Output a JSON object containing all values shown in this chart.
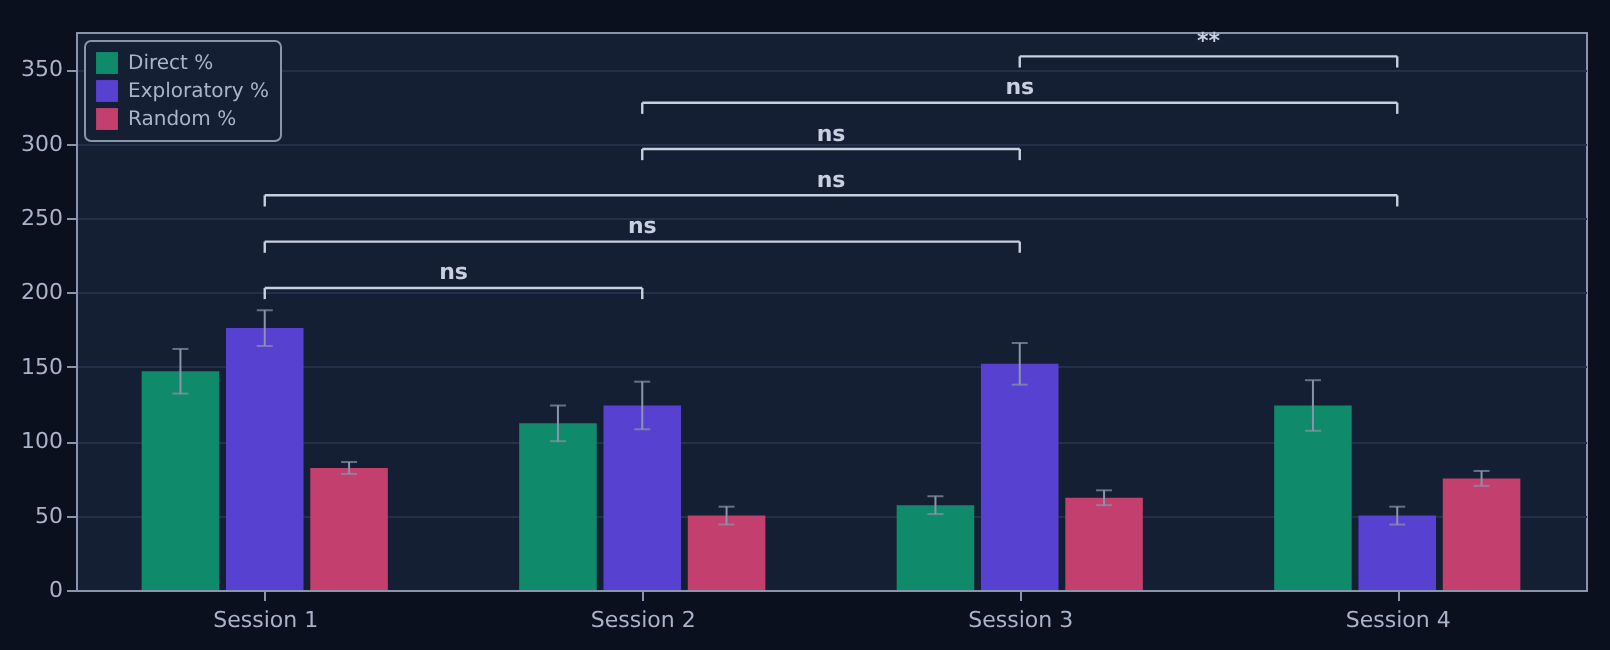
{
  "chart_data": {
    "type": "bar",
    "categories": [
      "Session 1",
      "Session 2",
      "Session 3",
      "Session 4"
    ],
    "series": [
      {
        "name": "Direct %",
        "color": "#0f8a6a",
        "values": [
          147,
          112,
          57,
          124
        ],
        "errors": [
          15,
          12,
          6,
          17
        ]
      },
      {
        "name": "Exploratory %",
        "color": "#5641d0",
        "values": [
          176,
          124,
          152,
          50
        ],
        "errors": [
          12,
          16,
          14,
          6
        ]
      },
      {
        "name": "Random %",
        "color": "#c23f6e",
        "values": [
          82,
          50,
          62,
          75
        ],
        "errors": [
          4,
          6,
          5,
          5
        ]
      }
    ],
    "ylim": [
      0,
      375
    ],
    "yticks": [
      0,
      50,
      100,
      150,
      200,
      250,
      300,
      350
    ],
    "grid": "y",
    "legend": "top left",
    "annotations": [
      "ns",
      "ns",
      "ns",
      "ns",
      "ns",
      "**"
    ]
  }
}
